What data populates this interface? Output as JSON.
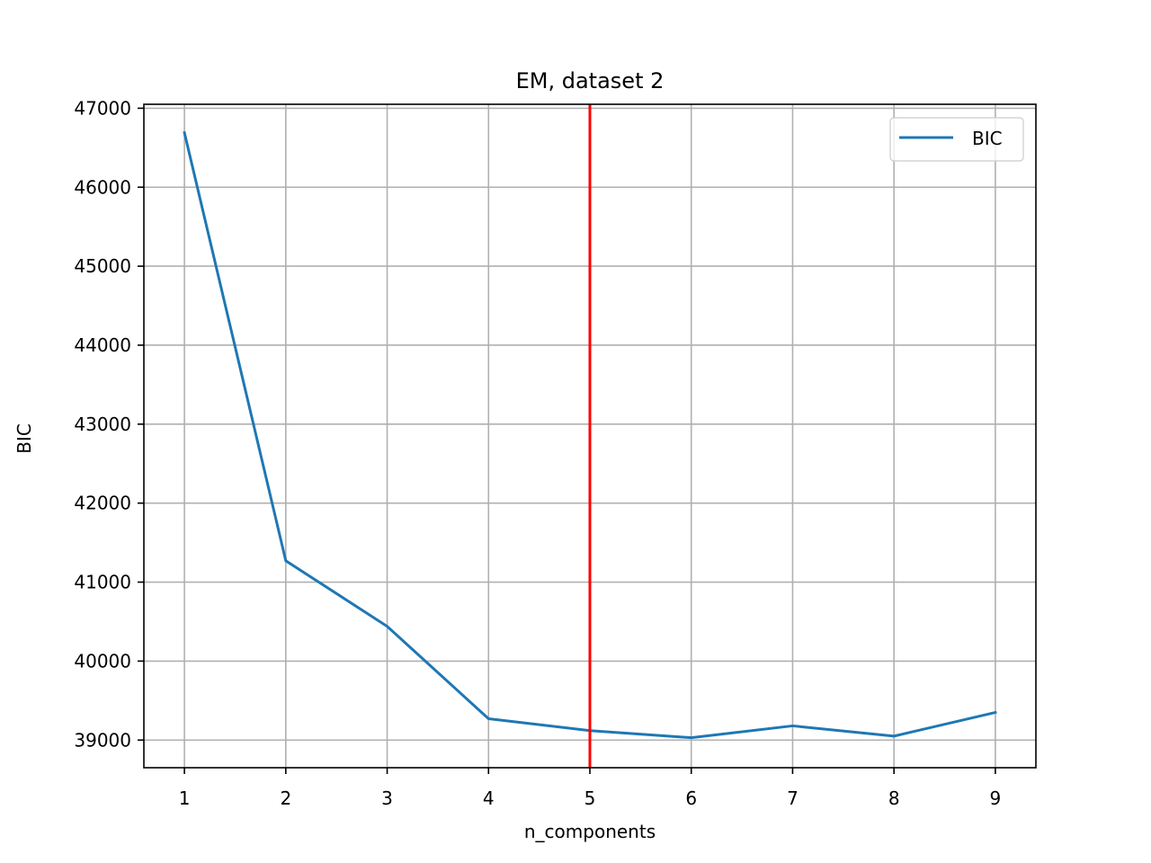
{
  "chart_data": {
    "type": "line",
    "title": "EM, dataset 2",
    "xlabel": "n_components",
    "ylabel": "BIC",
    "x": [
      1,
      2,
      3,
      4,
      5,
      6,
      7,
      8,
      9
    ],
    "series": [
      {
        "name": "BIC",
        "color": "#1f77b4",
        "values": [
          46690,
          41270,
          40440,
          39270,
          39120,
          39030,
          39180,
          39050,
          39350
        ]
      }
    ],
    "vline": {
      "x": 5,
      "color": "#ff0000"
    },
    "xlim": [
      0.6,
      9.4
    ],
    "ylim": [
      38650,
      47050
    ],
    "xticks": [
      1,
      2,
      3,
      4,
      5,
      6,
      7,
      8,
      9
    ],
    "yticks": [
      39000,
      40000,
      41000,
      42000,
      43000,
      44000,
      45000,
      46000,
      47000
    ],
    "grid": true,
    "legend": "top-right"
  }
}
